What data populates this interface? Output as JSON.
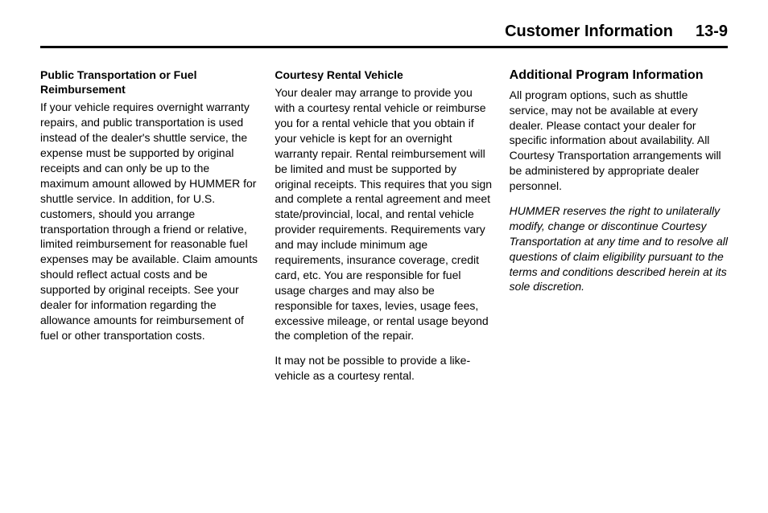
{
  "header": {
    "title": "Customer Information",
    "pagenum": "13-9"
  },
  "col1": {
    "heading": "Public Transportation or Fuel Reimbursement",
    "p1": "If your vehicle requires overnight warranty repairs, and public transportation is used instead of the dealer's shuttle service, the expense must be supported by original receipts and can only be up to the maximum amount allowed by HUMMER for shuttle service. In addition, for U.S. customers, should you arrange transportation through a friend or relative, limited reimbursement for reasonable fuel expenses may be available. Claim amounts should reflect actual costs and be supported by original receipts. See your dealer for information regarding the allowance amounts for reimbursement of fuel or other transportation costs."
  },
  "col2": {
    "heading": "Courtesy Rental Vehicle",
    "p1": "Your dealer may arrange to provide you with a courtesy rental vehicle or reimburse you for a rental vehicle that you obtain if your vehicle is kept for an overnight warranty repair. Rental reimbursement will be limited and must be supported by original receipts. This requires that you sign and complete a rental agreement and meet state/provincial, local, and rental vehicle provider requirements. Requirements vary and may include minimum age requirements, insurance coverage, credit card, etc. You are responsible for fuel usage charges and may also be responsible for taxes, levies, usage fees, excessive mileage, or rental usage beyond the completion of the repair.",
    "p2": "It may not be possible to provide a like-vehicle as a courtesy rental."
  },
  "col3": {
    "heading": "Additional Program Information",
    "p1": "All program options, such as shuttle service, may not be available at every dealer. Please contact your dealer for specific information about availability. All Courtesy Transportation arrangements will be administered by appropriate dealer personnel.",
    "p2": "HUMMER reserves the right to unilaterally modify, change or discontinue Courtesy Transportation at any time and to resolve all questions of claim eligibility pursuant to the terms and conditions described herein at its sole discretion."
  }
}
